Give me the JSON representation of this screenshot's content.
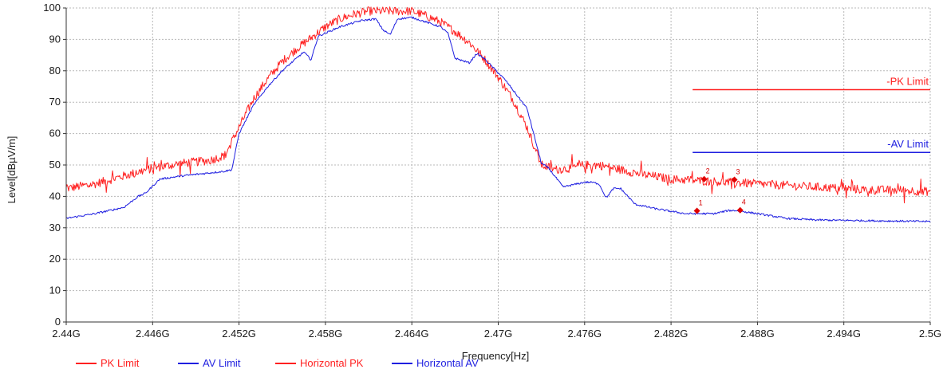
{
  "chart_data": {
    "type": "line",
    "xlabel": "Frequency[Hz]",
    "ylabel": "Level[dBµV/m]",
    "xlim": [
      2.44,
      2.5
    ],
    "ylim": [
      0,
      100
    ],
    "x_ticks": [
      2.44,
      2.446,
      2.452,
      2.458,
      2.464,
      2.47,
      2.476,
      2.482,
      2.488,
      2.494,
      2.5
    ],
    "x_tick_labels": [
      "2.44G",
      "2.446G",
      "2.452G",
      "2.458G",
      "2.464G",
      "2.47G",
      "2.476G",
      "2.482G",
      "2.488G",
      "2.494G",
      "2.5G"
    ],
    "y_ticks": [
      0,
      10,
      20,
      30,
      40,
      50,
      60,
      70,
      80,
      90,
      100
    ],
    "y_tick_labels": [
      "0",
      "10",
      "20",
      "30",
      "40",
      "50",
      "60",
      "70",
      "80",
      "90",
      "100"
    ],
    "grid": true,
    "legend_position": "bottom-left",
    "colors": {
      "pk": "#ff2020",
      "av": "#1f1fe0",
      "marker": "#e00000"
    },
    "limits": [
      {
        "name": "PK Limit",
        "label": "-PK Limit",
        "color": "#ff2020",
        "x_start": 2.4835,
        "x_end": 2.5,
        "value": 74
      },
      {
        "name": "AV Limit",
        "label": "-AV Limit",
        "color": "#1f1fe0",
        "x_start": 2.4835,
        "x_end": 2.5,
        "value": 54
      }
    ],
    "series": [
      {
        "name": "Horizontal PK",
        "color": "#ff2020",
        "noise": 1.4,
        "x": [
          2.44,
          2.442,
          2.444,
          2.446,
          2.448,
          2.45,
          2.451,
          2.452,
          2.453,
          2.454,
          2.455,
          2.456,
          2.457,
          2.458,
          2.459,
          2.46,
          2.461,
          2.462,
          2.463,
          2.464,
          2.465,
          2.466,
          2.467,
          2.468,
          2.469,
          2.47,
          2.471,
          2.472,
          2.473,
          2.474,
          2.475,
          2.476,
          2.477,
          2.478,
          2.479,
          2.48,
          2.482,
          2.484,
          2.486,
          2.488,
          2.49,
          2.492,
          2.494,
          2.496,
          2.498,
          2.5
        ],
        "y": [
          42.5,
          44,
          46.5,
          49,
          50.5,
          51.5,
          53,
          62,
          71,
          77.5,
          83,
          87,
          90.5,
          94,
          96.5,
          98,
          99,
          99,
          99,
          99,
          97.5,
          95.5,
          92.5,
          89,
          84,
          78,
          71,
          62,
          50,
          48.5,
          49,
          50,
          50,
          49,
          48,
          47,
          45.5,
          45,
          44.5,
          44,
          43.5,
          43,
          42.5,
          42,
          42,
          41.5
        ]
      },
      {
        "name": "Horizontal AV",
        "color": "#1f1fe0",
        "noise": 0.3,
        "x": [
          2.44,
          2.442,
          2.444,
          2.445,
          2.4455,
          2.4465,
          2.448,
          2.45,
          2.451,
          2.4515,
          2.452,
          2.453,
          2.454,
          2.455,
          2.4565,
          2.457,
          2.4575,
          2.459,
          2.4605,
          2.4615,
          2.462,
          2.4625,
          2.463,
          2.464,
          2.466,
          2.4665,
          2.467,
          2.468,
          2.4685,
          2.469,
          2.4705,
          2.472,
          2.473,
          2.4735,
          2.4745,
          2.476,
          2.4765,
          2.477,
          2.4775,
          2.478,
          2.4785,
          2.4795,
          2.481,
          2.483,
          2.485,
          2.486,
          2.4865,
          2.488,
          2.49,
          2.492,
          2.495,
          2.5
        ],
        "y": [
          33,
          34.5,
          36.5,
          40,
          41,
          45.5,
          46.5,
          47.5,
          48,
          48.5,
          60,
          69,
          75,
          80,
          86,
          83.5,
          91,
          94,
          96,
          96.5,
          93,
          91.5,
          96.5,
          97,
          94,
          92,
          84,
          82.5,
          85.5,
          84,
          77,
          68,
          50.5,
          49,
          43,
          44.5,
          44.5,
          44,
          39.5,
          42.5,
          42.5,
          37.5,
          36,
          34.5,
          34.5,
          35.5,
          35.5,
          34.5,
          33,
          32.5,
          32.3,
          32
        ]
      }
    ],
    "markers": [
      {
        "label": "1",
        "x": 2.4838,
        "y": 35.4
      },
      {
        "label": "2",
        "x": 2.4843,
        "y": 45.5
      },
      {
        "label": "3",
        "x": 2.4864,
        "y": 45.3
      },
      {
        "label": "4",
        "x": 2.4868,
        "y": 35.6
      }
    ],
    "legend": [
      {
        "label": "PK Limit",
        "color": "#ff2020"
      },
      {
        "label": "AV Limit",
        "color": "#1f1fe0"
      },
      {
        "label": "Horizontal PK",
        "color": "#ff2020"
      },
      {
        "label": "Horizontal AV",
        "color": "#1f1fe0"
      }
    ]
  }
}
